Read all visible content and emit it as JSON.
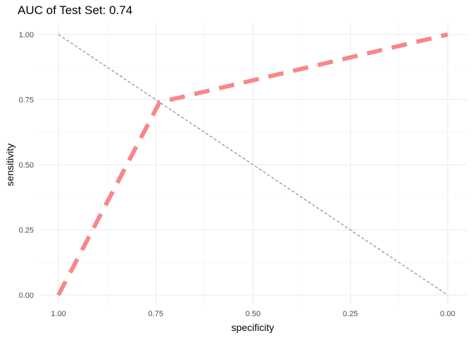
{
  "chart_data": {
    "type": "line",
    "title": "AUC of Test Set: 0.74",
    "xlabel": "specificity",
    "ylabel": "sensitivity",
    "x_reversed": true,
    "xlim": [
      1.0,
      0.0
    ],
    "ylim": [
      0.0,
      1.0
    ],
    "x_ticks": [
      "1.00",
      "0.75",
      "0.50",
      "0.25",
      "0.00"
    ],
    "y_ticks": [
      "0.00",
      "0.25",
      "0.50",
      "0.75",
      "1.00"
    ],
    "grid": true,
    "series": [
      {
        "style": "dashed",
        "color": "#f8868a",
        "points": [
          {
            "specificity": 1.0,
            "sensitivity": 0.0
          },
          {
            "specificity": 0.74,
            "sensitivity": 0.74
          },
          {
            "specificity": 0.0,
            "sensitivity": 1.0
          }
        ]
      },
      {
        "style": "dotted-reference",
        "color": "#999999",
        "points": [
          {
            "specificity": 1.0,
            "sensitivity": 1.0
          },
          {
            "specificity": 0.0,
            "sensitivity": 0.0
          }
        ]
      }
    ]
  }
}
